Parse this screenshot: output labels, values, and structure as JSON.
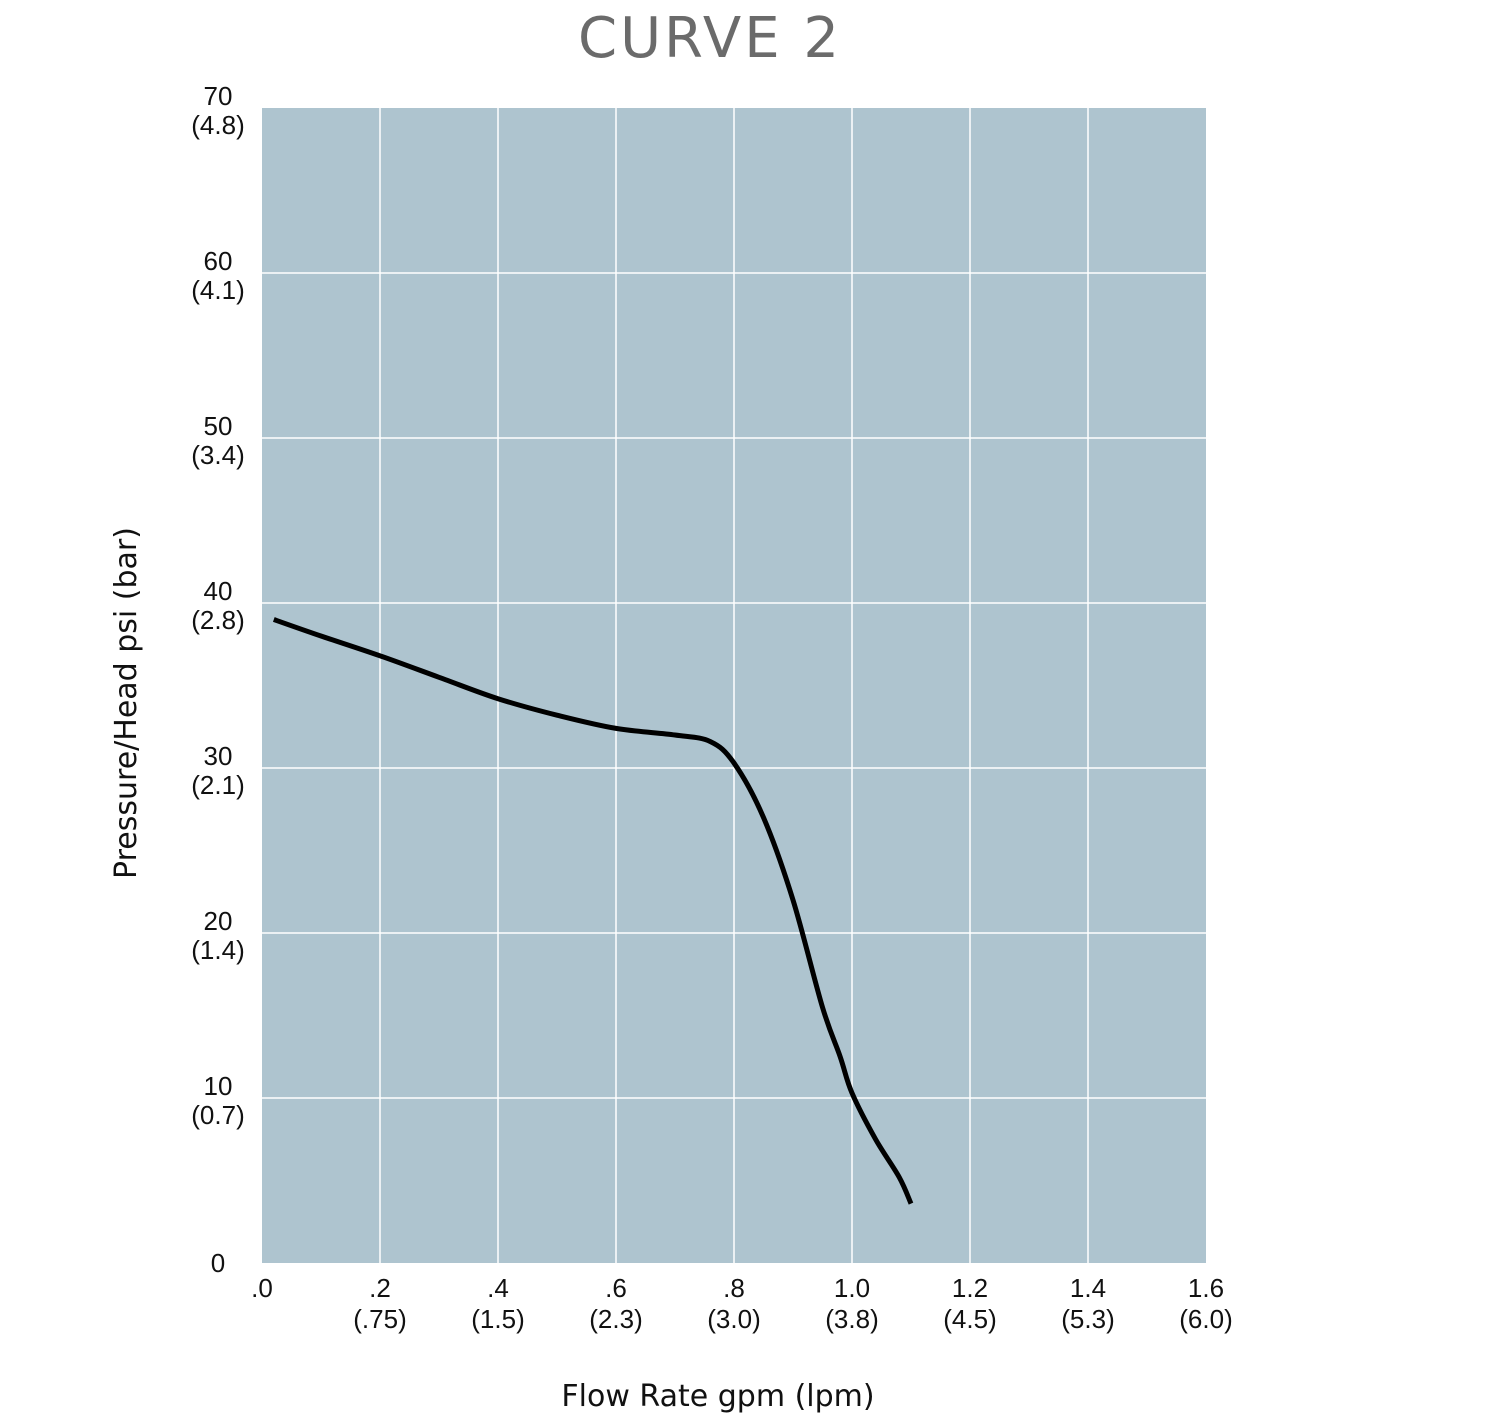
{
  "chart_data": {
    "type": "line",
    "title": "CURVE 2",
    "xlabel": "Flow Rate gpm (lpm)",
    "ylabel": "Pressure/Head psi (bar)",
    "xlim": [
      0,
      1.6
    ],
    "ylim": [
      0,
      70
    ],
    "grid": true,
    "colors": {
      "plot_background": "#aec4cf",
      "grid": "#ffffff",
      "line": "#000000",
      "title": "#6b6b6b"
    },
    "x_ticks": [
      {
        "value": 0.0,
        "label": ".0",
        "sublabel": ""
      },
      {
        "value": 0.2,
        "label": ".2",
        "sublabel": "(.75)"
      },
      {
        "value": 0.4,
        "label": ".4",
        "sublabel": "(1.5)"
      },
      {
        "value": 0.6,
        "label": ".6",
        "sublabel": "(2.3)"
      },
      {
        "value": 0.8,
        "label": ".8",
        "sublabel": "(3.0)"
      },
      {
        "value": 1.0,
        "label": "1.0",
        "sublabel": "(3.8)"
      },
      {
        "value": 1.2,
        "label": "1.2",
        "sublabel": "(4.5)"
      },
      {
        "value": 1.4,
        "label": "1.4",
        "sublabel": "(5.3)"
      },
      {
        "value": 1.6,
        "label": "1.6",
        "sublabel": "(6.0)"
      }
    ],
    "y_ticks": [
      {
        "value": 0,
        "label": "0",
        "sublabel": ""
      },
      {
        "value": 10,
        "label": "10",
        "sublabel": "(0.7)"
      },
      {
        "value": 20,
        "label": "20",
        "sublabel": "(1.4)"
      },
      {
        "value": 30,
        "label": "30",
        "sublabel": "(2.1)"
      },
      {
        "value": 40,
        "label": "40",
        "sublabel": "(2.8)"
      },
      {
        "value": 50,
        "label": "50",
        "sublabel": "(3.4)"
      },
      {
        "value": 60,
        "label": "60",
        "sublabel": "(4.1)"
      },
      {
        "value": 70,
        "label": "70",
        "sublabel": "(4.8)"
      }
    ],
    "series": [
      {
        "x": [
          0.02,
          0.1,
          0.2,
          0.3,
          0.4,
          0.5,
          0.6,
          0.7,
          0.76,
          0.8,
          0.85,
          0.9,
          0.95,
          0.98,
          1.0,
          1.04,
          1.08,
          1.1
        ],
        "y": [
          39.0,
          38.0,
          36.8,
          35.5,
          34.2,
          33.2,
          32.4,
          32.0,
          31.6,
          30.3,
          27.0,
          22.0,
          15.5,
          12.5,
          10.3,
          7.5,
          5.2,
          3.6
        ]
      }
    ]
  }
}
